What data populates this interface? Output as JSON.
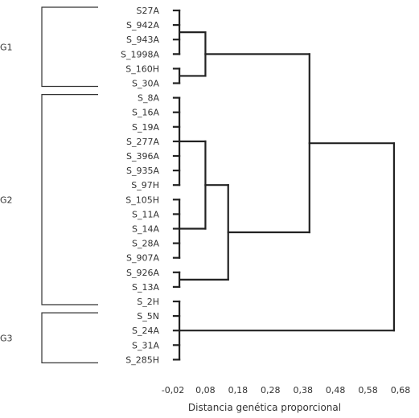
{
  "leaves": [
    "S27A",
    "S_942A",
    "S_943A",
    "S_1998A",
    "S_160H",
    "S_30A",
    "S_8A",
    "S_16A",
    "S_19A",
    "S_277A",
    "S_396A",
    "S_935A",
    "S_97H",
    "S_105H",
    "S_11A",
    "S_14A",
    "S_28A",
    "S_907A",
    "S_926A",
    "S_13A",
    "S_2H",
    "S_5N",
    "S_24A",
    "S_31A",
    "S_285H"
  ],
  "groups": [
    {
      "label": "G1",
      "from": 0,
      "to": 5
    },
    {
      "label": "G2",
      "from": 6,
      "to": 20
    },
    {
      "label": "G3",
      "from": 21,
      "to": 24
    }
  ],
  "axis": {
    "title": "Distancia genética proporcional",
    "ticks": [
      "-0,02",
      "0,08",
      "0,18",
      "0,28",
      "0,38",
      "0,48",
      "0,58",
      "0,68"
    ],
    "tick_values": [
      -0.02,
      0.08,
      0.18,
      0.28,
      0.38,
      0.48,
      0.58,
      0.68
    ],
    "range": [
      -0.02,
      0.68
    ]
  },
  "clusters": [
    {
      "id": "c1",
      "members": [
        0,
        1,
        2,
        3
      ],
      "height": 0.0
    },
    {
      "id": "c2",
      "members": [
        4,
        5
      ],
      "height": 0.0
    },
    {
      "id": "c3",
      "members": [
        "c1",
        "c2"
      ],
      "height": 0.08
    },
    {
      "id": "c4",
      "members": [
        6,
        7,
        8,
        9,
        10,
        11,
        12
      ],
      "height": 0.0
    },
    {
      "id": "c5",
      "members": [
        13,
        14,
        15,
        16,
        17
      ],
      "height": 0.0
    },
    {
      "id": "c6",
      "members": [
        "c4",
        "c5"
      ],
      "height": 0.08
    },
    {
      "id": "c7",
      "members": [
        18,
        19
      ],
      "height": 0.0
    },
    {
      "id": "c8",
      "members": [
        "c6",
        "c7"
      ],
      "height": 0.15
    },
    {
      "id": "c9",
      "members": [
        "c3",
        "c8"
      ],
      "height": 0.4
    },
    {
      "id": "c10",
      "members": [
        20,
        21,
        22,
        23,
        24
      ],
      "height": 0.0
    },
    {
      "id": "c11",
      "members": [
        "c9",
        "c10"
      ],
      "height": 0.66
    }
  ]
}
